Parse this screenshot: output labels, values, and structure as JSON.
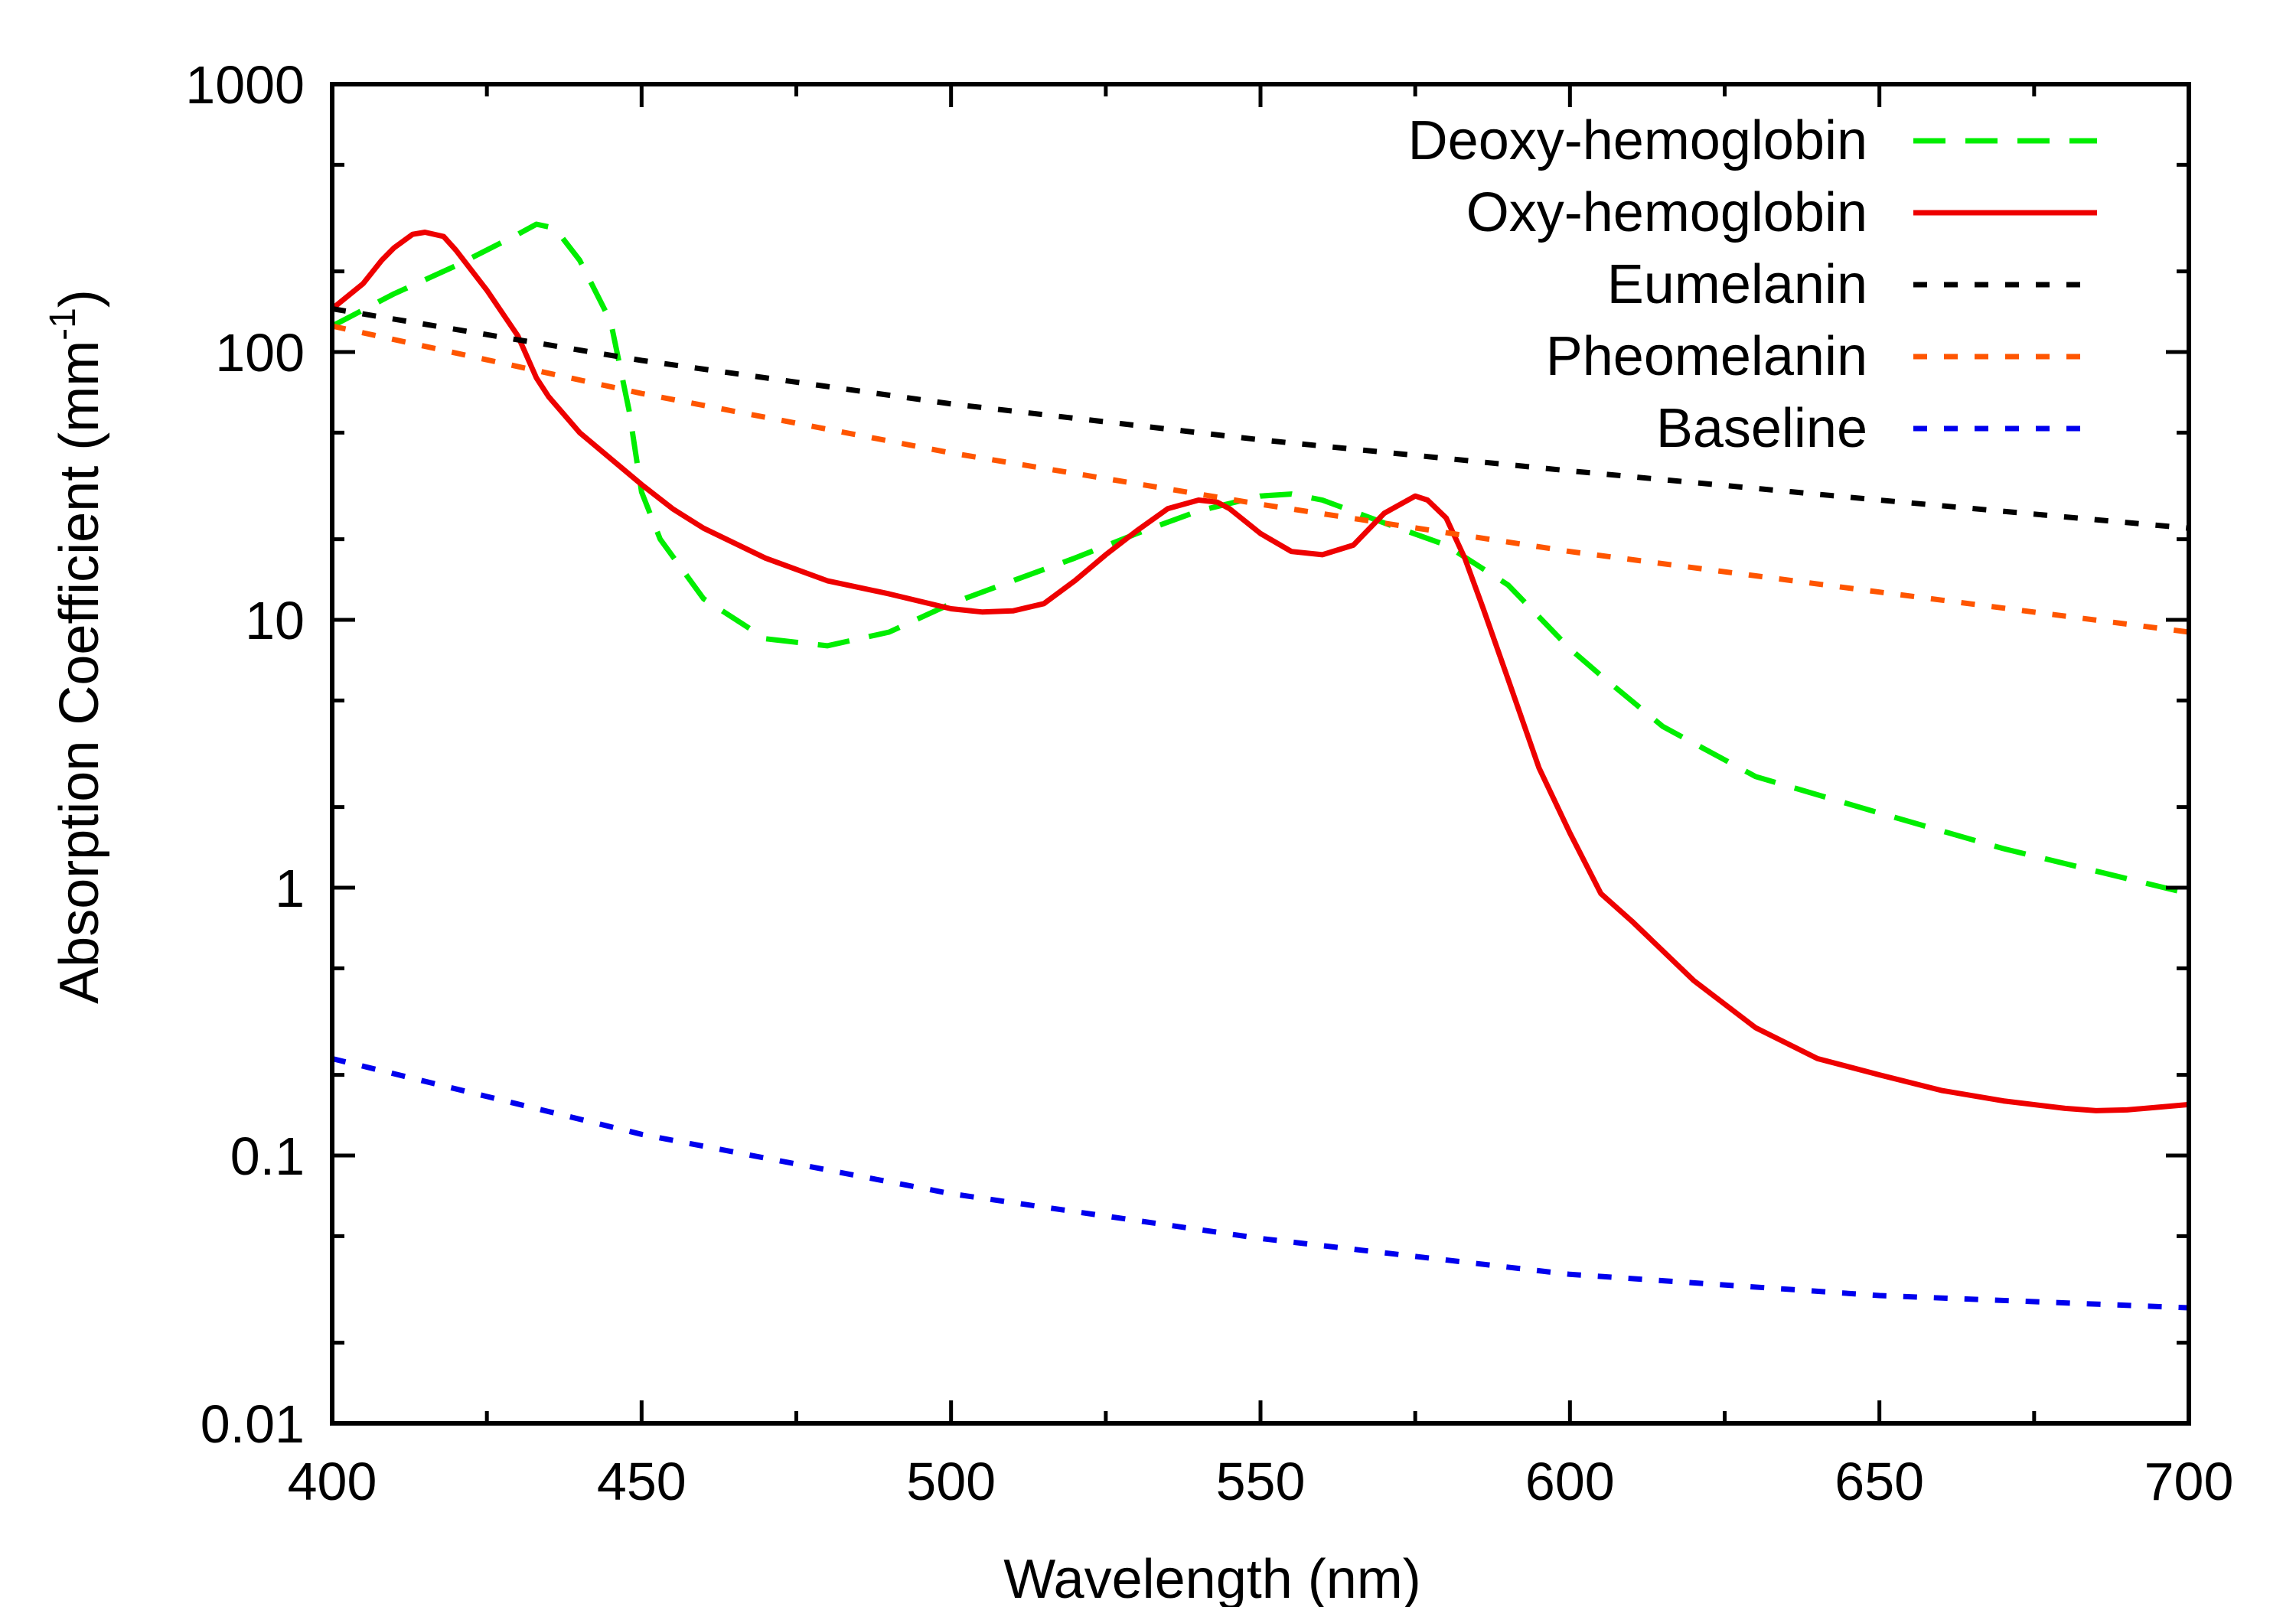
{
  "chart_data": {
    "type": "line",
    "title": "",
    "xlabel": "Wavelength (nm)",
    "ylabel": "Absorption Coefficient (mm-1)",
    "ylabel_main": "Absorption Coefficient (mm",
    "ylabel_sup": "-1",
    "ylabel_close": ")",
    "xlim": [
      400,
      700
    ],
    "ylim": [
      0.01,
      1000
    ],
    "yscale": "log",
    "x_ticks": [
      400,
      450,
      500,
      550,
      600,
      650,
      700
    ],
    "x_tick_labels": [
      "400",
      "450",
      "500",
      "550",
      "600",
      "650",
      "700"
    ],
    "y_ticks": [
      0.01,
      0.1,
      1,
      10,
      100,
      1000
    ],
    "y_tick_labels": [
      "0.01",
      "0.1",
      "1",
      "10",
      "100",
      "1000"
    ],
    "grid": false,
    "legend_position": "top-right",
    "series": [
      {
        "name": "Deoxy-hemoglobin",
        "color": "#00ee00",
        "dash": "long-dash",
        "x": [
          400,
          410,
          420,
          430,
          433,
          436,
          440,
          445,
          448,
          450,
          453,
          460,
          470,
          480,
          490,
          500,
          510,
          520,
          530,
          540,
          550,
          555,
          560,
          570,
          580,
          590,
          600,
          605,
          615,
          630,
          650,
          670,
          700
        ],
        "y": [
          125,
          165,
          210,
          275,
          300,
          290,
          220,
          130,
          60,
          30,
          20,
          12,
          8.5,
          8,
          9,
          11.5,
          14,
          17,
          21,
          25.5,
          29,
          29.5,
          28,
          23,
          19,
          13.5,
          7.8,
          6.2,
          4,
          2.6,
          1.9,
          1.4,
          0.95
        ]
      },
      {
        "name": "Oxy-hemoglobin",
        "color": "#ee0000",
        "dash": "solid",
        "x": [
          400,
          405,
          408,
          410,
          413,
          415,
          418,
          420,
          425,
          430,
          433,
          435,
          440,
          445,
          450,
          455,
          460,
          470,
          480,
          490,
          500,
          505,
          510,
          515,
          520,
          525,
          530,
          535,
          540,
          543,
          545,
          550,
          555,
          560,
          565,
          570,
          575,
          577,
          580,
          583,
          586,
          590,
          595,
          600,
          605,
          610,
          620,
          630,
          640,
          650,
          660,
          670,
          680,
          685,
          690,
          700
        ],
        "y": [
          145,
          180,
          220,
          245,
          275,
          280,
          270,
          240,
          170,
          115,
          80,
          68,
          50,
          40,
          32,
          26,
          22,
          17,
          14,
          12.5,
          11,
          10.7,
          10.8,
          11.5,
          14,
          17.5,
          21.5,
          26,
          28,
          27.5,
          26,
          21,
          18,
          17.5,
          19,
          25,
          29,
          28,
          24,
          17,
          11,
          6,
          2.8,
          1.6,
          0.95,
          0.75,
          0.45,
          0.3,
          0.23,
          0.2,
          0.175,
          0.16,
          0.15,
          0.147,
          0.148,
          0.155
        ]
      },
      {
        "name": "Eumelanin",
        "color": "#000000",
        "dash": "short-dash",
        "x": [
          400,
          450,
          500,
          550,
          600,
          650,
          700
        ],
        "y": [
          145,
          93,
          64,
          47,
          36,
          28,
          22
        ]
      },
      {
        "name": "Pheomelanin",
        "color": "#ff5500",
        "dash": "short-dash",
        "x": [
          400,
          450,
          500,
          550,
          600,
          650,
          700
        ],
        "y": [
          125,
          70,
          42,
          27,
          18,
          12.7,
          9
        ]
      },
      {
        "name": "Baseline",
        "color": "#0000ee",
        "dash": "short-dash",
        "x": [
          400,
          450,
          500,
          550,
          600,
          650,
          700
        ],
        "y": [
          0.23,
          0.12,
          0.072,
          0.049,
          0.036,
          0.03,
          0.027
        ]
      }
    ]
  }
}
